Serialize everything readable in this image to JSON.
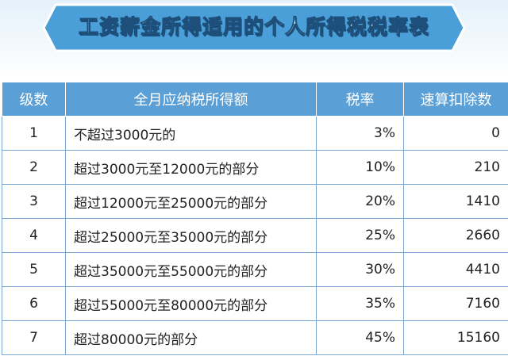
{
  "header": {
    "title": "工资薪金所得适用的个人所得税税率表"
  },
  "table": {
    "columns": [
      "级数",
      "全月应纳税所得额",
      "税率",
      "速算扣除数"
    ],
    "rows": [
      [
        "1",
        "不超过3000元的",
        "3%",
        "0"
      ],
      [
        "2",
        "超过3000元至12000元的部分",
        "10%",
        "210"
      ],
      [
        "3",
        "超过12000元至25000元的部分",
        "20%",
        "1410"
      ],
      [
        "4",
        "超过25000元至35000元的部分",
        "25%",
        "2660"
      ],
      [
        "5",
        "超过35000元至55000元的部分",
        "30%",
        "4410"
      ],
      [
        "6",
        "超过55000元至80000元的部分",
        "35%",
        "7160"
      ],
      [
        "7",
        "超过80000元的部分",
        "45%",
        "15160"
      ]
    ]
  }
}
